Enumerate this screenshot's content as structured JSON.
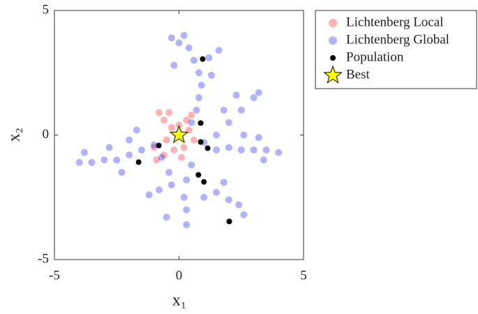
{
  "chart_data": {
    "type": "scatter",
    "xlabel": "x₁",
    "ylabel": "x₂",
    "xlim": [
      -5,
      5
    ],
    "ylim": [
      -5,
      5
    ],
    "xticks": [
      -5,
      0,
      5
    ],
    "yticks": [
      -5,
      0,
      5
    ],
    "legend": "outside-right",
    "series": [
      {
        "name": "Lichtenberg Local",
        "color": "#ff0000",
        "marker": "circle",
        "x": [
          -0.3,
          -0.6,
          -0.8,
          -0.4,
          0.3,
          0.5,
          0.4,
          0.6,
          0.2,
          -0.2,
          -0.6,
          -0.9,
          -1.0,
          -0.5,
          0,
          0.1
        ],
        "values": [
          0.3,
          0.6,
          0.9,
          0.9,
          0.6,
          0.8,
          0.2,
          -0.2,
          -0.5,
          -0.6,
          -0.8,
          -1.0,
          -0.5,
          -0.2,
          0.4,
          -0.9
        ]
      },
      {
        "name": "Lichtenberg Global",
        "color": "#0000ff",
        "marker": "circle",
        "x": [
          0.5,
          0.7,
          0.8,
          0.9,
          0.8,
          0.6,
          0.4,
          0.2,
          0,
          -0.3,
          1.2,
          1.6,
          -0.2,
          1.3,
          1.0,
          1.5,
          2.0,
          2.5,
          3.0,
          3.5,
          4.0,
          3.2,
          3.4,
          2.6,
          1.5,
          2.0,
          2.5,
          3.0,
          3.2,
          1.8,
          2.3,
          -1.0,
          -1.5,
          -2.0,
          -2.5,
          -3.0,
          -3.5,
          -4.0,
          -3.8,
          -2.8,
          -2.0,
          -1.7,
          -2.3,
          0.5,
          0.3,
          -0.3,
          -0.8,
          -1.2,
          0.2,
          0.3,
          0.3,
          -0.5,
          1.0,
          1.5,
          2.0,
          2.4,
          2.6,
          1.8,
          -0.7,
          -0.4
        ],
        "values": [
          0.5,
          1.0,
          1.5,
          2.0,
          2.5,
          3.0,
          3.5,
          4.0,
          3.7,
          3.9,
          3.1,
          3.4,
          2.8,
          2.4,
          -0.3,
          -0.6,
          -0.5,
          -0.6,
          -0.6,
          -0.6,
          -0.7,
          -0.1,
          -1.0,
          0.0,
          0.0,
          0.5,
          1.0,
          1.5,
          1.7,
          1.0,
          1.6,
          -0.4,
          -0.6,
          -0.8,
          -1.0,
          -1.0,
          -1.1,
          -1.1,
          -0.7,
          -0.5,
          -0.2,
          0.2,
          -1.5,
          -1.2,
          -1.8,
          -2.0,
          -2.2,
          -2.4,
          -2.5,
          -3.0,
          -3.6,
          -3.3,
          -2.5,
          -2.3,
          -2.6,
          -2.8,
          -3.2,
          -1.9,
          -0.9,
          -1.5
        ]
      },
      {
        "name": "Population",
        "color": "#000000",
        "marker": "dot",
        "x": [
          0.95,
          0.87,
          0.87,
          1.15,
          -0.81,
          -1.62,
          0.78,
          1.0,
          2.02
        ],
        "values": [
          3.05,
          0.48,
          -0.28,
          -0.53,
          -0.42,
          -1.09,
          -1.6,
          -1.88,
          -3.47
        ]
      },
      {
        "name": "Best",
        "color": "#ffff00",
        "marker": "star",
        "x": [
          0
        ],
        "values": [
          0
        ]
      }
    ]
  }
}
